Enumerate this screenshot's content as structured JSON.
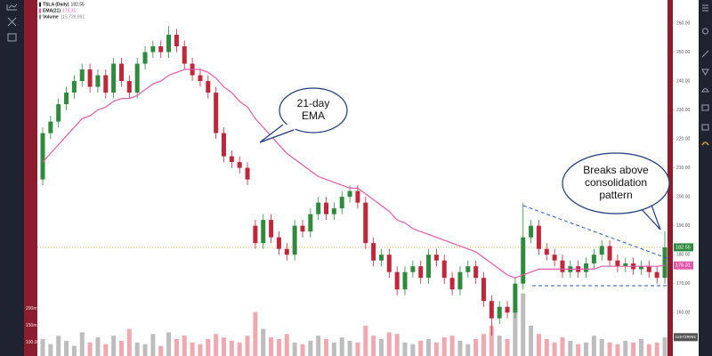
{
  "chart_data": {
    "type": "candlestick",
    "legend": [
      {
        "name": "TSLA (Daily)",
        "value": "182.55",
        "color": "#222222"
      },
      {
        "name": "EMA(21)",
        "value": "176.31",
        "color": "#e05aa8"
      },
      {
        "name": "Volume",
        "value": "115,729,991",
        "color": "#888888"
      }
    ],
    "open": [
      206,
      222,
      226,
      232,
      236,
      240,
      244,
      238,
      242,
      236,
      246,
      240,
      236,
      246,
      250,
      252,
      250,
      256,
      252,
      246,
      242,
      240,
      236,
      222,
      214,
      212,
      210,
      190,
      184,
      192,
      186,
      182,
      180,
      190,
      188,
      194,
      198,
      194,
      196,
      200,
      202,
      198,
      184,
      178,
      180,
      174,
      168,
      174,
      176,
      172,
      180,
      178,
      172,
      168,
      174,
      176,
      172,
      164,
      158,
      162,
      160,
      170,
      186,
      190,
      182,
      180,
      178,
      174,
      176,
      174,
      177,
      180,
      183,
      178,
      176,
      177,
      175,
      176,
      174,
      172
    ],
    "high": [
      224,
      228,
      234,
      238,
      242,
      246,
      246,
      244,
      244,
      248,
      248,
      242,
      248,
      252,
      254,
      254,
      259,
      258,
      254,
      248,
      244,
      242,
      238,
      224,
      216,
      214,
      212,
      192,
      194,
      194,
      188,
      184,
      192,
      192,
      196,
      200,
      200,
      198,
      202,
      204,
      204,
      200,
      186,
      182,
      182,
      176,
      176,
      178,
      178,
      182,
      182,
      180,
      174,
      176,
      178,
      178,
      174,
      166,
      164,
      164,
      172,
      198,
      192,
      192,
      184,
      182,
      180,
      178,
      178,
      179,
      182,
      185,
      185,
      180,
      179,
      179,
      178,
      178,
      176,
      188
    ],
    "low": [
      204,
      220,
      224,
      230,
      234,
      238,
      236,
      236,
      234,
      234,
      238,
      234,
      234,
      244,
      248,
      248,
      248,
      250,
      244,
      240,
      238,
      234,
      220,
      212,
      210,
      208,
      204,
      182,
      182,
      184,
      180,
      178,
      178,
      186,
      186,
      192,
      192,
      192,
      194,
      198,
      196,
      182,
      176,
      176,
      172,
      166,
      166,
      172,
      170,
      170,
      176,
      170,
      166,
      166,
      172,
      170,
      162,
      152,
      156,
      158,
      158,
      168,
      184,
      180,
      178,
      176,
      172,
      172,
      172,
      172,
      175,
      178,
      176,
      174,
      174,
      173,
      173,
      172,
      170,
      170
    ],
    "close": [
      222,
      226,
      232,
      236,
      240,
      244,
      238,
      242,
      236,
      246,
      240,
      236,
      246,
      250,
      252,
      250,
      256,
      252,
      246,
      242,
      240,
      236,
      222,
      214,
      212,
      210,
      206,
      184,
      192,
      186,
      182,
      180,
      190,
      188,
      194,
      198,
      194,
      196,
      200,
      202,
      198,
      184,
      178,
      180,
      174,
      168,
      174,
      176,
      172,
      180,
      178,
      172,
      168,
      174,
      176,
      172,
      164,
      158,
      162,
      160,
      170,
      186,
      190,
      182,
      180,
      178,
      174,
      176,
      174,
      177,
      180,
      183,
      178,
      176,
      177,
      175,
      176,
      174,
      172,
      182.55
    ],
    "ema": [
      212,
      215,
      218,
      221,
      224,
      227,
      228,
      230,
      231,
      233,
      234,
      234,
      235,
      237,
      239,
      240,
      242,
      243,
      244,
      244,
      244,
      243,
      241,
      238,
      236,
      233,
      231,
      227,
      224,
      221,
      218,
      215,
      213,
      211,
      209,
      207,
      206,
      205,
      204,
      203,
      203,
      201,
      199,
      197,
      195,
      192,
      191,
      189,
      188,
      187,
      186,
      185,
      184,
      183,
      182,
      181,
      179,
      177,
      175,
      173,
      172,
      173,
      174,
      175,
      175,
      175,
      175,
      175,
      175,
      175,
      175,
      176,
      176,
      176,
      176,
      176,
      176,
      176,
      176,
      176.31
    ],
    "volume": [
      110,
      95,
      120,
      105,
      90,
      130,
      100,
      115,
      95,
      120,
      105,
      140,
      100,
      95,
      125,
      90,
      130,
      110,
      120,
      100,
      95,
      110,
      125,
      115,
      105,
      100,
      120,
      190,
      140,
      115,
      110,
      125,
      100,
      95,
      105,
      120,
      110,
      100,
      115,
      105,
      100,
      150,
      120,
      110,
      130,
      125,
      100,
      95,
      105,
      110,
      100,
      115,
      120,
      105,
      95,
      110,
      125,
      150,
      120,
      110,
      200,
      245,
      150,
      125,
      110,
      100,
      115,
      105,
      95,
      100,
      120,
      110,
      100,
      95,
      105,
      100,
      110,
      95,
      100,
      115.729991
    ],
    "up_color": "#2f8a3e",
    "down_color": "#c0273a",
    "ema_color": "#e05aa8",
    "volume_up_color": "#bdbdbd",
    "volume_down_color": "#f0a9b0",
    "ylim": [
      145,
      268
    ],
    "yticks": [
      {
        "value": 260,
        "label": "260.00"
      },
      {
        "value": 250,
        "label": "250.00"
      },
      {
        "value": 240,
        "label": "240.00"
      },
      {
        "value": 230,
        "label": "230.00"
      },
      {
        "value": 220,
        "label": "220.00"
      },
      {
        "value": 210,
        "label": "210.00"
      },
      {
        "value": 200,
        "label": "200.00"
      },
      {
        "value": 190,
        "label": "190.00"
      },
      {
        "value": 180,
        "label": "180.00"
      },
      {
        "value": 170,
        "label": "170.00"
      },
      {
        "value": 160,
        "label": "160.00"
      }
    ],
    "volume_lim": [
      60,
      260
    ],
    "volume_ticks": [
      {
        "value": 200,
        "label": "200m"
      },
      {
        "value": 150,
        "label": "150m"
      },
      {
        "value": 100,
        "label": "100.0m"
      }
    ],
    "price_tag": "182.55",
    "ema_tag": "176.31",
    "volume_tag": "115729991",
    "annotations": [
      {
        "lines": [
          "21-day",
          "EMA"
        ]
      },
      {
        "lines": [
          "Breaks above",
          "consolidation",
          "pattern"
        ]
      }
    ]
  }
}
